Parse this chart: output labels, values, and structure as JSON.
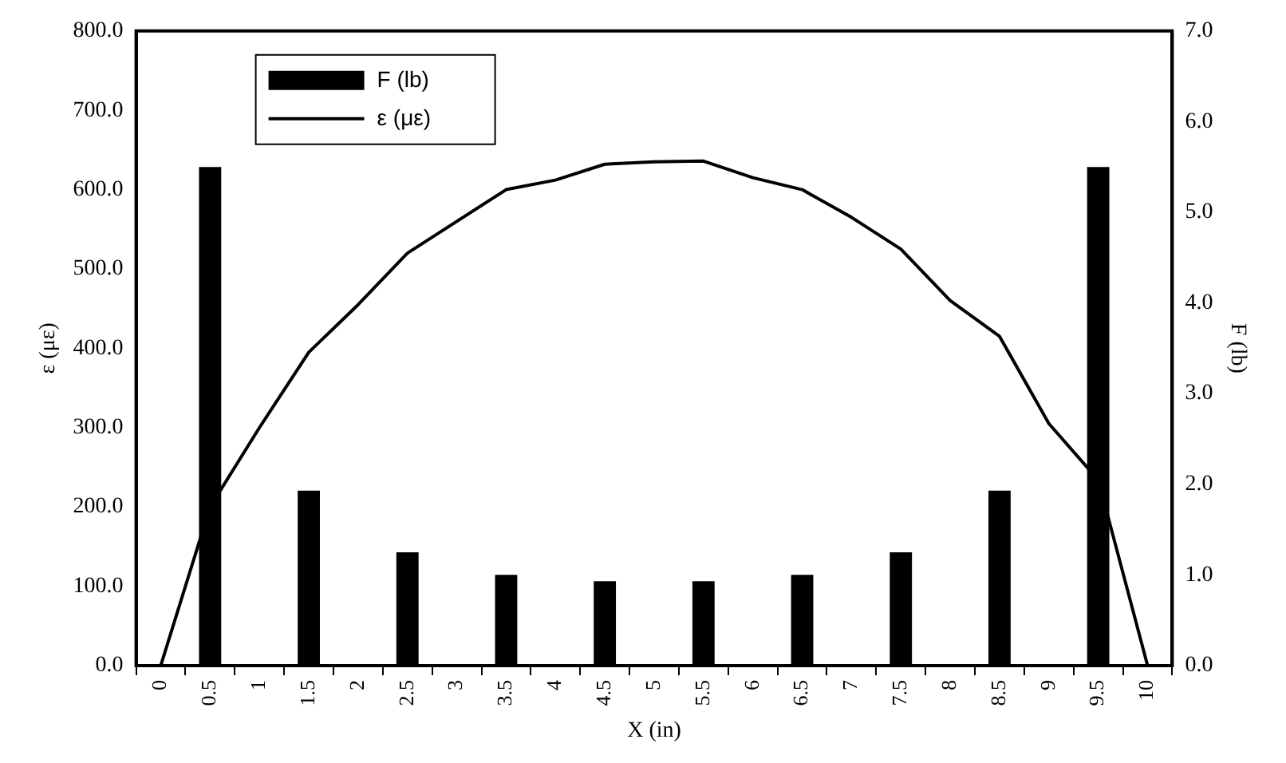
{
  "chart_data": {
    "type": "bar",
    "xlabel": "X (in)",
    "ylabel": "ε (με)",
    "y2label": "F (lb)",
    "categories": [
      "0",
      "0.5",
      "1",
      "1.5",
      "2",
      "2.5",
      "3",
      "3.5",
      "4",
      "4.5",
      "5",
      "5.5",
      "6",
      "6.5",
      "7",
      "7.5",
      "8",
      "8.5",
      "9",
      "9.5",
      "10"
    ],
    "series": [
      {
        "name": "F (lb)",
        "axis": "y2",
        "color": "#000000",
        "values": [
          null,
          5.5,
          null,
          1.93,
          null,
          1.25,
          null,
          1.0,
          null,
          0.93,
          null,
          0.93,
          null,
          1.0,
          null,
          1.25,
          null,
          1.93,
          null,
          5.5,
          null
        ]
      },
      {
        "name": "ε (με)",
        "type": "line",
        "color": "#000000",
        "values": [
          0,
          200,
          300,
          395,
          455,
          520,
          560,
          600,
          612,
          632,
          635,
          636,
          615,
          600,
          565,
          525,
          460,
          415,
          305,
          234,
          0
        ]
      }
    ],
    "ylim": [
      0,
      800
    ],
    "yticks": [
      {
        "value": 0,
        "label": "0.0"
      },
      {
        "value": 100,
        "label": "100.0"
      },
      {
        "value": 200,
        "label": "200.0"
      },
      {
        "value": 300,
        "label": "300.0"
      },
      {
        "value": 400,
        "label": "400.0"
      },
      {
        "value": 500,
        "label": "500.0"
      },
      {
        "value": 600,
        "label": "600.0"
      },
      {
        "value": 700,
        "label": "700.0"
      },
      {
        "value": 800,
        "label": "800.0"
      }
    ],
    "y2lim": [
      0,
      7
    ],
    "y2ticks": [
      {
        "value": 0,
        "label": "0.0"
      },
      {
        "value": 1,
        "label": "1.0"
      },
      {
        "value": 2,
        "label": "2.0"
      },
      {
        "value": 3,
        "label": "3.0"
      },
      {
        "value": 4,
        "label": "4.0"
      },
      {
        "value": 5,
        "label": "5.0"
      },
      {
        "value": 6,
        "label": "6.0"
      },
      {
        "value": 7,
        "label": "7.0"
      }
    ],
    "legend": "top left",
    "grid": false,
    "marker": "none",
    "line_style": "solid"
  }
}
